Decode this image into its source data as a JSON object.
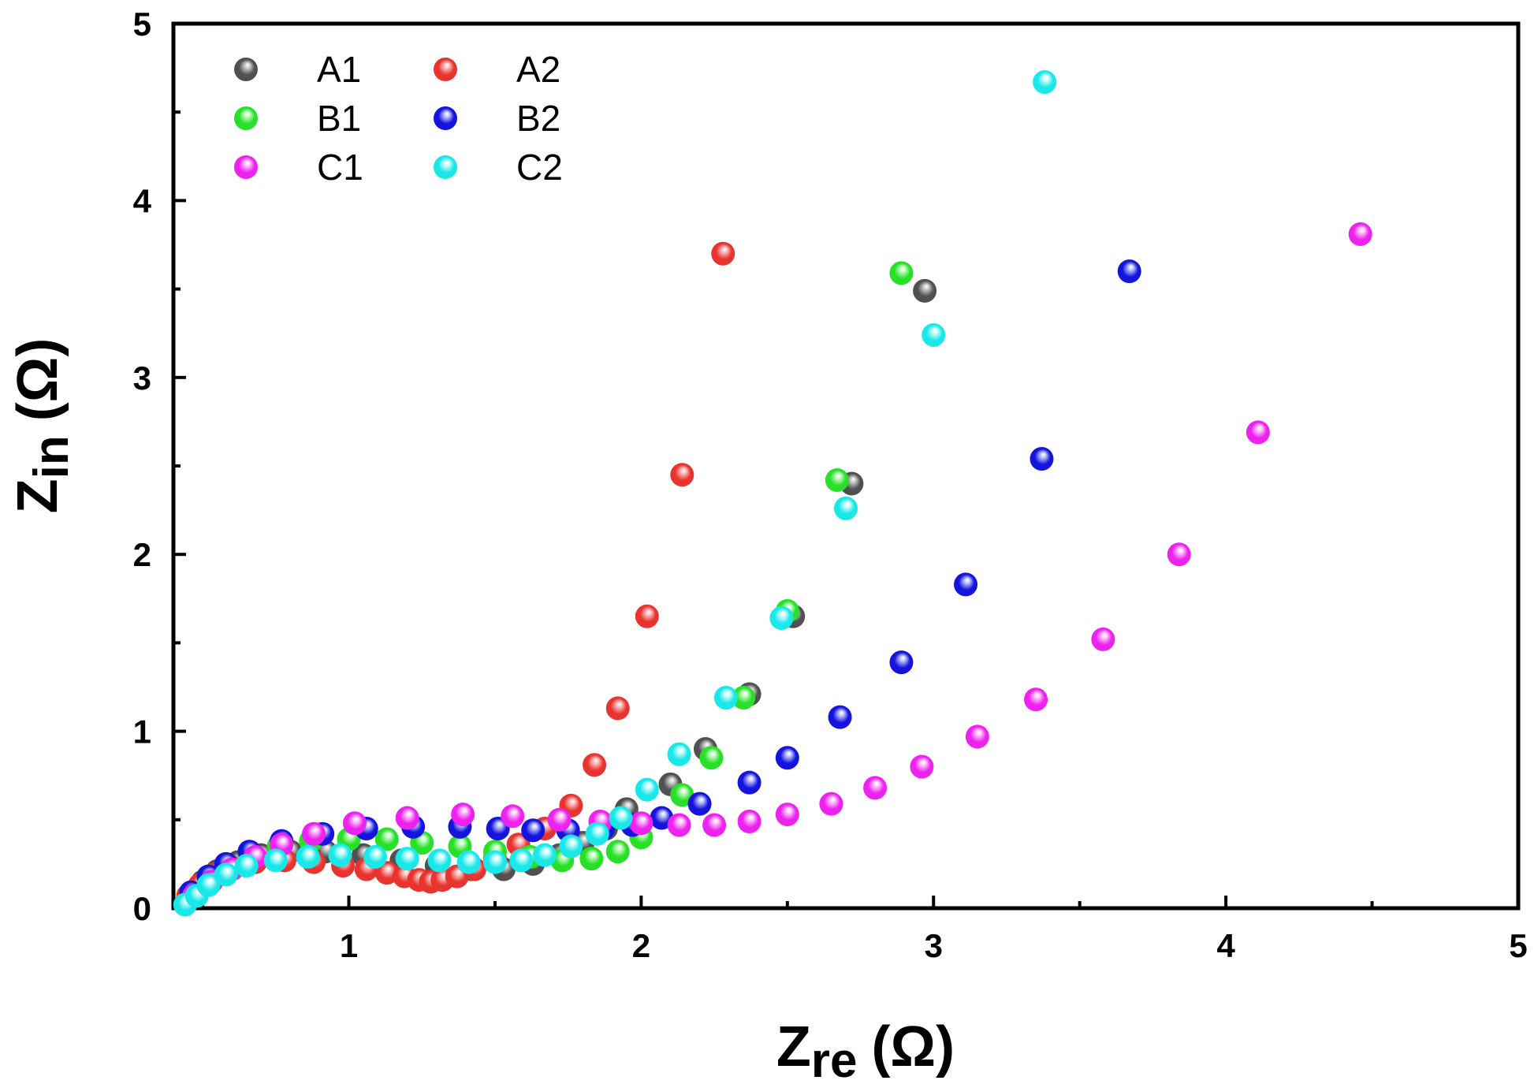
{
  "chart_data": {
    "type": "scatter",
    "title": "",
    "xlabel": {
      "main": "Z",
      "sub": "re",
      "unit": "(Ω)"
    },
    "ylabel": {
      "main": "Z",
      "sub": "in",
      "unit": "(Ω)"
    },
    "xlim": [
      0.4,
      5
    ],
    "ylim": [
      0,
      5
    ],
    "xticks": [
      1,
      2,
      3,
      4,
      5
    ],
    "yticks": [
      0,
      1,
      2,
      3,
      4,
      5
    ],
    "xtick_labels": [
      "1",
      "2",
      "3",
      "4",
      "5"
    ],
    "ytick_labels": [
      "0",
      "1",
      "2",
      "3",
      "4",
      "5"
    ],
    "grid": false,
    "legend_position": "top-left",
    "series": [
      {
        "name": "A1",
        "color": "#505050",
        "highlight": "#d8d8d8",
        "x": [
          0.46,
          0.5,
          0.55,
          0.62,
          0.7,
          0.8,
          0.92,
          1.05,
          1.18,
          1.3,
          1.42,
          1.53,
          1.63,
          1.72,
          1.8,
          1.88,
          1.95,
          2.1,
          2.22,
          2.37,
          2.52,
          2.72,
          2.97
        ],
        "y": [
          0.08,
          0.15,
          0.21,
          0.26,
          0.3,
          0.32,
          0.32,
          0.3,
          0.27,
          0.24,
          0.22,
          0.22,
          0.25,
          0.3,
          0.37,
          0.45,
          0.56,
          0.7,
          0.9,
          1.21,
          1.65,
          2.4,
          3.49
        ]
      },
      {
        "name": "A2",
        "color": "#e8332f",
        "highlight": "#ffcfcf",
        "x": [
          0.45,
          0.49,
          0.54,
          0.6,
          0.68,
          0.78,
          0.88,
          0.98,
          1.06,
          1.13,
          1.19,
          1.24,
          1.28,
          1.32,
          1.37,
          1.43,
          1.5,
          1.58,
          1.67,
          1.76,
          1.84,
          1.92,
          2.02,
          2.14,
          2.28
        ],
        "y": [
          0.07,
          0.13,
          0.19,
          0.23,
          0.26,
          0.27,
          0.26,
          0.24,
          0.22,
          0.2,
          0.18,
          0.16,
          0.15,
          0.16,
          0.18,
          0.22,
          0.28,
          0.36,
          0.45,
          0.58,
          0.81,
          1.13,
          1.65,
          2.45,
          3.7
        ]
      },
      {
        "name": "B1",
        "color": "#27e027",
        "highlight": "#d4ffd4",
        "x": [
          0.46,
          0.52,
          0.58,
          0.66,
          0.76,
          0.87,
          1.0,
          1.13,
          1.25,
          1.38,
          1.5,
          1.62,
          1.73,
          1.83,
          1.92,
          2.0,
          2.14,
          2.24,
          2.35,
          2.5,
          2.67,
          2.89
        ],
        "y": [
          0.09,
          0.17,
          0.24,
          0.3,
          0.35,
          0.38,
          0.39,
          0.39,
          0.37,
          0.35,
          0.32,
          0.29,
          0.27,
          0.28,
          0.32,
          0.4,
          0.64,
          0.85,
          1.19,
          1.68,
          2.42,
          3.59
        ]
      },
      {
        "name": "B2",
        "color": "#1414dd",
        "highlight": "#cfd6ff",
        "x": [
          0.46,
          0.52,
          0.58,
          0.66,
          0.77,
          0.91,
          1.06,
          1.22,
          1.38,
          1.51,
          1.63,
          1.75,
          1.87,
          1.97,
          2.07,
          2.2,
          2.37,
          2.5,
          2.68,
          2.89,
          3.11,
          3.37,
          3.67
        ],
        "y": [
          0.09,
          0.18,
          0.25,
          0.32,
          0.38,
          0.42,
          0.45,
          0.46,
          0.46,
          0.45,
          0.44,
          0.44,
          0.45,
          0.47,
          0.51,
          0.59,
          0.71,
          0.85,
          1.08,
          1.39,
          1.83,
          2.54,
          3.6
        ]
      },
      {
        "name": "C1",
        "color": "#ee22ee",
        "highlight": "#ffd6ff",
        "x": [
          0.47,
          0.53,
          0.6,
          0.68,
          0.77,
          0.88,
          1.02,
          1.2,
          1.39,
          1.56,
          1.72,
          1.86,
          2.0,
          2.13,
          2.25,
          2.37,
          2.5,
          2.65,
          2.8,
          2.96,
          3.15,
          3.35,
          3.58,
          3.84,
          4.11,
          4.46
        ],
        "y": [
          0.07,
          0.15,
          0.22,
          0.29,
          0.36,
          0.42,
          0.48,
          0.51,
          0.53,
          0.52,
          0.5,
          0.49,
          0.48,
          0.47,
          0.47,
          0.49,
          0.53,
          0.59,
          0.68,
          0.8,
          0.97,
          1.18,
          1.52,
          2.0,
          2.69,
          3.81
        ]
      },
      {
        "name": "C2",
        "color": "#1ae8e8",
        "highlight": "#e0ffff",
        "x": [
          0.44,
          0.48,
          0.52,
          0.58,
          0.65,
          0.75,
          0.86,
          0.97,
          1.09,
          1.2,
          1.31,
          1.41,
          1.5,
          1.59,
          1.67,
          1.76,
          1.85,
          1.93,
          2.02,
          2.13,
          2.29,
          2.48,
          2.7,
          3.0,
          3.38
        ],
        "y": [
          0.02,
          0.07,
          0.13,
          0.19,
          0.24,
          0.27,
          0.29,
          0.3,
          0.29,
          0.28,
          0.27,
          0.26,
          0.26,
          0.27,
          0.3,
          0.35,
          0.42,
          0.51,
          0.67,
          0.87,
          1.19,
          1.64,
          2.26,
          3.24,
          4.67
        ]
      }
    ]
  }
}
